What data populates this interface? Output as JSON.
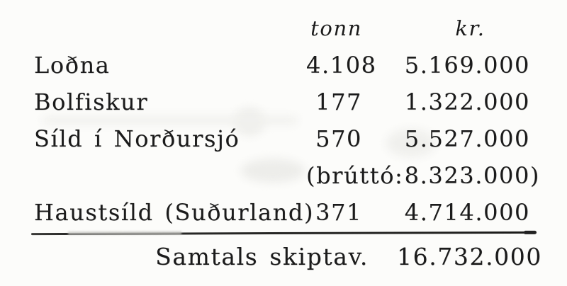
{
  "page": {
    "background": "#fcfcfa",
    "ink": "#1b1b1b"
  },
  "table": {
    "col_headers": {
      "tonn": "tonn",
      "kr": "kr."
    },
    "rows": [
      {
        "label": "Loðna",
        "tonn": "4.108",
        "kr": "5.169.000"
      },
      {
        "label": "Bolfiskur",
        "tonn": "177",
        "kr": "1.322.000"
      },
      {
        "label": "Síld í Norðursjó",
        "tonn": "570",
        "kr": "5.527.000"
      },
      {
        "label": "",
        "tonn": "(brúttó:",
        "kr": "8.323.000)"
      },
      {
        "label": "Haustsíld (Suðurland)",
        "tonn": "371",
        "kr": "4.714.000"
      }
    ],
    "total": {
      "label": "Samtals skiptav.",
      "kr": "16.732.000"
    }
  }
}
